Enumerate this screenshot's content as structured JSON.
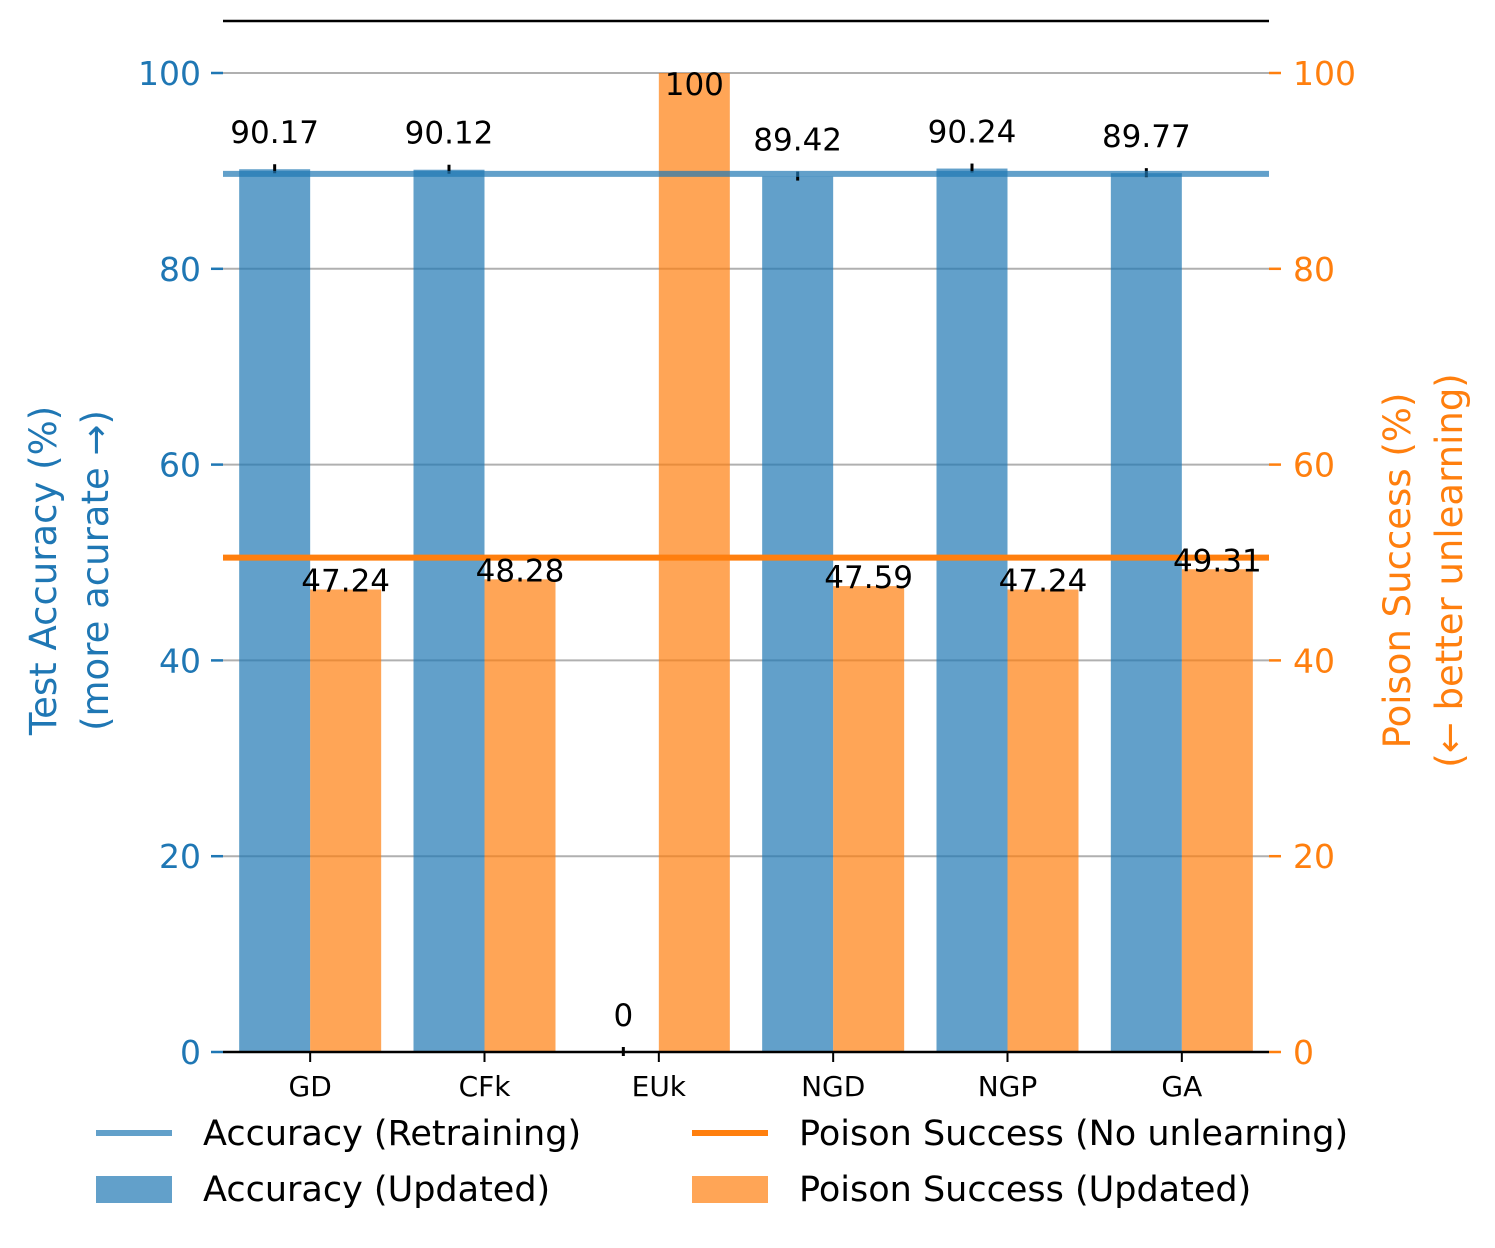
{
  "chart_data": {
    "type": "bar",
    "categories": [
      "GD",
      "CFk",
      "EUk",
      "NGD",
      "NGP",
      "GA"
    ],
    "series": [
      {
        "name": "Accuracy (Updated)",
        "axis": "left",
        "color": "#1f77b4",
        "values": [
          90.17,
          90.12,
          0,
          89.42,
          90.24,
          89.77
        ],
        "labels": [
          "90.17",
          "90.12",
          "0",
          "89.42",
          "90.24",
          "89.77"
        ]
      },
      {
        "name": "Poison Success (Updated)",
        "axis": "right",
        "color": "#ff7f0e",
        "values": [
          47.24,
          48.28,
          100,
          47.59,
          47.24,
          49.31
        ],
        "labels": [
          "47.24",
          "48.28",
          "100",
          "47.59",
          "47.24",
          "49.31"
        ]
      }
    ],
    "reference_lines": [
      {
        "name": "Accuracy (Retraining)",
        "axis": "left",
        "value": 89.7,
        "color": "#1f77b4"
      },
      {
        "name": "Poison Success (No unlearning)",
        "axis": "right",
        "value": 50.5,
        "color": "#ff7f0e"
      }
    ],
    "ylabel_left": [
      "Test Accuracy (%)",
      "(more acurate →)"
    ],
    "ylabel_right": [
      "Poison Success (%)",
      "(← better unlearning)"
    ],
    "ylim_left": [
      0,
      100
    ],
    "ylim_right": [
      0,
      100
    ],
    "yticks": [
      0,
      20,
      40,
      60,
      80,
      100
    ],
    "ytick_labels": [
      "0",
      "20",
      "40",
      "60",
      "80",
      "100"
    ],
    "grid": true,
    "legend": {
      "position": "bottom",
      "entries": [
        {
          "label": "Accuracy (Retraining)",
          "kind": "line",
          "color": "#1f77b4"
        },
        {
          "label": "Poison Success (No unlearning)",
          "kind": "line",
          "color": "#ff7f0e"
        },
        {
          "label": "Accuracy (Updated)",
          "kind": "patch",
          "color": "#1f77b4"
        },
        {
          "label": "Poison Success (Updated)",
          "kind": "patch",
          "color": "#ff7f0e"
        }
      ]
    }
  }
}
